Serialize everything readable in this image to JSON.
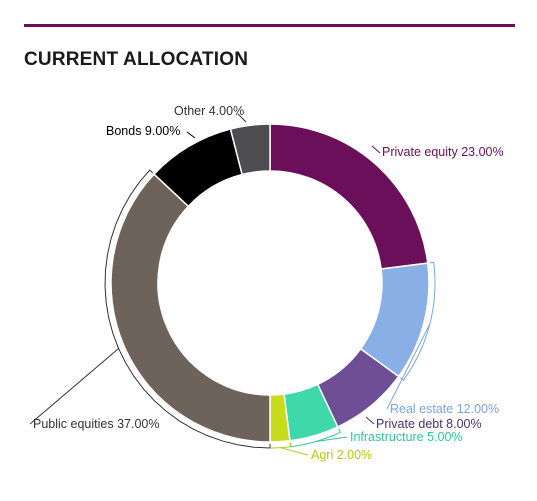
{
  "colors": {
    "accent": "#6b0f5a"
  },
  "chart_data": {
    "type": "pie",
    "title": "CURRENT ALLOCATION",
    "donut": true,
    "slices": [
      {
        "label": "Private equity",
        "value": 23.0,
        "value_text": "23.00%",
        "color": "#6b0f5a",
        "label_color": "#6b0f5a"
      },
      {
        "label": "Real estate",
        "value": 12.0,
        "value_text": "12.00%",
        "color": "#8aaee6",
        "label_color": "#7da3e0"
      },
      {
        "label": "Private debt",
        "value": 8.0,
        "value_text": "8.00%",
        "color": "#6e4f96",
        "label_color": "#4a3070"
      },
      {
        "label": "Infrastructure",
        "value": 5.0,
        "value_text": "5.00%",
        "color": "#3fd9a9",
        "label_color": "#2fc896"
      },
      {
        "label": "Agri",
        "value": 2.0,
        "value_text": "2.00%",
        "color": "#c9dc1c",
        "label_color": "#b5c914"
      },
      {
        "label": "Public equities",
        "value": 37.0,
        "value_text": "37.00%",
        "color": "#6e635b",
        "label_color": "#333333"
      },
      {
        "label": "Bonds",
        "value": 9.0,
        "value_text": "9.00%",
        "color": "#000000",
        "label_color": "#000000"
      },
      {
        "label": "Other",
        "value": 4.0,
        "value_text": "4.00%",
        "color": "#4d4d4f",
        "label_color": "#333333"
      }
    ]
  }
}
